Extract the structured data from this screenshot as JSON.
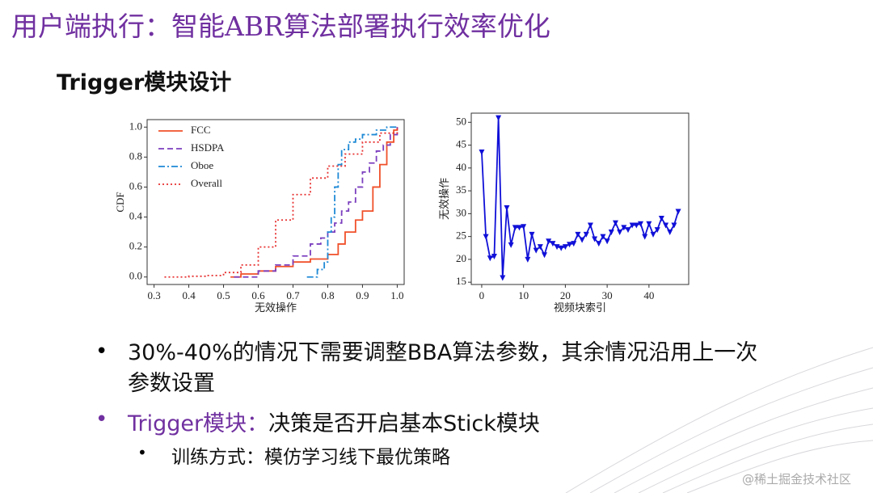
{
  "header": {
    "title": "用户端执行：智能ABR算法部署执行效率优化",
    "subtitle": "Trigger模块设计"
  },
  "bullets": [
    {
      "text": "30%-40%的情况下需要调整BBA算法参数，其余情况沿用上一次参数设置"
    },
    {
      "label": "Trigger模块：",
      "text": "决策是否开启基本Stick模块"
    },
    {
      "text": "训练方式：模仿学习线下最优策略"
    }
  ],
  "watermark": "@稀土掘金技术社区",
  "chart_data": [
    {
      "type": "line",
      "drawstyle": "steps",
      "ylabel": "CDF",
      "xlabel": "无效操作",
      "legend": "upper left",
      "xlim": [
        0.28,
        1.02
      ],
      "ylim": [
        -0.05,
        1.05
      ],
      "xticks": [
        0.3,
        0.4,
        0.5,
        0.6,
        0.7,
        0.8,
        0.9,
        {
          "value": 1,
          "label": "1.0"
        }
      ],
      "yticks": [
        {
          "value": 0,
          "label": "0.0"
        },
        0.2,
        0.4,
        0.6,
        0.8,
        {
          "value": 1,
          "label": "1.0"
        }
      ],
      "series": [
        {
          "name": "FCC",
          "color": "#f0502a",
          "dash": "solid",
          "x": [
            0.52,
            0.55,
            0.6,
            0.65,
            0.7,
            0.75,
            0.8,
            0.83,
            0.85,
            0.88,
            0.9,
            0.93,
            0.95,
            0.97,
            0.99,
            1.0
          ],
          "values": [
            0,
            0.02,
            0.04,
            0.07,
            0.1,
            0.12,
            0.15,
            0.22,
            0.3,
            0.38,
            0.44,
            0.6,
            0.75,
            0.9,
            0.98,
            1.0
          ]
        },
        {
          "name": "HSDPA",
          "color": "#7b3fbf",
          "dash": "dashed",
          "x": [
            0.53,
            0.6,
            0.65,
            0.7,
            0.75,
            0.78,
            0.8,
            0.82,
            0.84,
            0.86,
            0.88,
            0.9,
            0.92,
            0.94,
            0.96,
            0.98,
            1.0
          ],
          "values": [
            0,
            0.04,
            0.08,
            0.14,
            0.22,
            0.26,
            0.3,
            0.36,
            0.44,
            0.5,
            0.6,
            0.7,
            0.76,
            0.84,
            0.88,
            0.95,
            1.0
          ]
        },
        {
          "name": "Oboe",
          "color": "#1f8ad6",
          "dash": "dashdot",
          "x": [
            0.74,
            0.77,
            0.79,
            0.8,
            0.81,
            0.82,
            0.83,
            0.84,
            0.86,
            0.88,
            0.9,
            0.94,
            0.97,
            1.0
          ],
          "values": [
            0,
            0.05,
            0.1,
            0.3,
            0.4,
            0.6,
            0.75,
            0.85,
            0.9,
            0.92,
            0.95,
            0.98,
            1.0,
            1.0
          ]
        },
        {
          "name": "Overall",
          "color": "#e83030",
          "dash": "dotted",
          "x": [
            0.33,
            0.4,
            0.45,
            0.5,
            0.55,
            0.6,
            0.65,
            0.7,
            0.75,
            0.8,
            0.85,
            0.9,
            0.95,
            1.0
          ],
          "values": [
            0,
            0.005,
            0.01,
            0.03,
            0.08,
            0.2,
            0.38,
            0.55,
            0.66,
            0.74,
            0.82,
            0.9,
            0.96,
            1.0
          ]
        }
      ]
    },
    {
      "type": "line",
      "marker": "triangle-down",
      "ylabel": "无效操作",
      "xlabel": "视频块索引",
      "xlim": [
        -2.5,
        49.5
      ],
      "ylim": [
        14.5,
        52
      ],
      "xticks": [
        0,
        10,
        20,
        30,
        40
      ],
      "yticks": [
        15,
        20,
        25,
        30,
        35,
        40,
        45,
        50
      ],
      "series": [
        {
          "color": "#1010d8",
          "x": [
            0,
            1,
            2,
            3,
            4,
            5,
            6,
            7,
            8,
            9,
            10,
            11,
            12,
            13,
            14,
            15,
            16,
            17,
            18,
            19,
            20,
            21,
            22,
            23,
            24,
            25,
            26,
            27,
            28,
            29,
            30,
            31,
            32,
            33,
            34,
            35,
            36,
            37,
            38,
            39,
            40,
            41,
            42,
            43,
            44,
            45,
            46,
            47
          ],
          "values": [
            43.5,
            25,
            20.3,
            20.7,
            51,
            16,
            31.3,
            23.2,
            27,
            27,
            27.2,
            20,
            25.5,
            22,
            22.8,
            21,
            24,
            23.5,
            22.8,
            22.5,
            22.8,
            23.3,
            23.5,
            25.5,
            24.3,
            25.5,
            27.5,
            24.5,
            23.5,
            25,
            24,
            26,
            28,
            26,
            27,
            26.5,
            27.5,
            27.5,
            27.8,
            25,
            27.8,
            25.5,
            26.5,
            29,
            27.5,
            26,
            27.5,
            30.5
          ]
        }
      ]
    }
  ]
}
